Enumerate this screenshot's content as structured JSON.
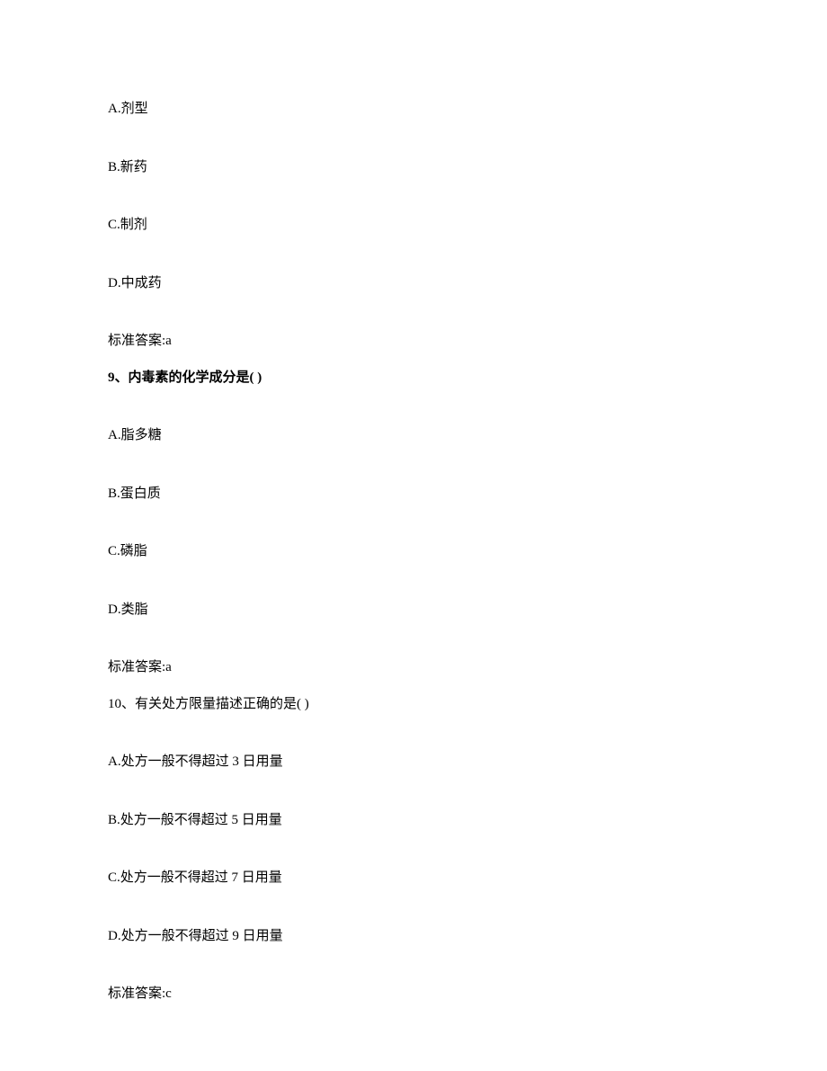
{
  "q8": {
    "options": {
      "a": "A.剂型",
      "b": "B.新药",
      "c": "C.制剂",
      "d": "D.中成药"
    },
    "answer": "标准答案:a"
  },
  "q9": {
    "stem": "9、内毒素的化学成分是( )",
    "options": {
      "a": "A.脂多糖",
      "b": "B.蛋白质",
      "c": "C.磷脂",
      "d": "D.类脂"
    },
    "answer": "标准答案:a"
  },
  "q10": {
    "stem": "10、有关处方限量描述正确的是( )",
    "options": {
      "a": "A.处方一般不得超过 3 日用量",
      "b": "B.处方一般不得超过 5 日用量",
      "c": "C.处方一般不得超过 7 日用量",
      "d": "D.处方一般不得超过 9 日用量"
    },
    "answer": "标准答案:c"
  },
  "text_color": "#000000",
  "background_color": "#ffffff",
  "font_size": 15,
  "line_spacing": 42
}
